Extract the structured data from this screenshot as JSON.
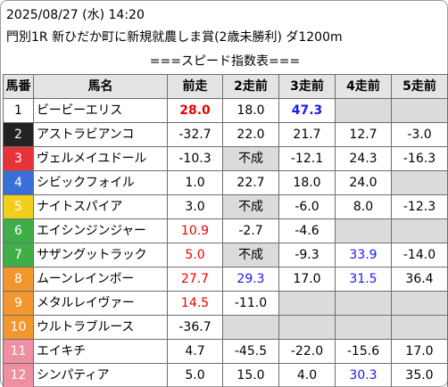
{
  "header": {
    "datetime": "2025/08/27 (水) 14:20",
    "race": "門別1R 新ひだか町に新規就農しま賞(2歳未勝利) ダ1200m",
    "table_title": "===スピード指数表==="
  },
  "columns": [
    "馬番",
    "馬名",
    "前走",
    "2走前",
    "3走前",
    "4走前",
    "5走前"
  ],
  "colors": {
    "red": "#ee0000",
    "blue": "#1a1aee",
    "cell_empty": "#dcdcdc",
    "header_bg": "#e4e4e4"
  },
  "rows": [
    {
      "num": "1",
      "num_bg": "#ffffff",
      "num_fg": "#000000",
      "name": "ビービーエリス",
      "cells": [
        {
          "v": "28.0",
          "c": "red",
          "b": true
        },
        {
          "v": "18.0"
        },
        {
          "v": "47.3",
          "c": "blue",
          "b": true
        },
        {
          "v": "",
          "g": true
        },
        {
          "v": "",
          "g": true
        }
      ]
    },
    {
      "num": "2",
      "num_bg": "#222222",
      "num_fg": "#ffffff",
      "name": "アストラビアンコ",
      "cells": [
        {
          "v": "-32.7"
        },
        {
          "v": "22.0"
        },
        {
          "v": "21.7"
        },
        {
          "v": "12.7"
        },
        {
          "v": "-3.0"
        }
      ]
    },
    {
      "num": "3",
      "num_bg": "#e8323a",
      "num_fg": "#ffffff",
      "name": "ヴェルメイユドール",
      "cells": [
        {
          "v": "-10.3"
        },
        {
          "v": "不成",
          "g": true
        },
        {
          "v": "-12.1"
        },
        {
          "v": "24.3"
        },
        {
          "v": "-16.3"
        }
      ]
    },
    {
      "num": "4",
      "num_bg": "#3a6fd8",
      "num_fg": "#ffffff",
      "name": "シビックフォイル",
      "cells": [
        {
          "v": "1.0"
        },
        {
          "v": "22.7"
        },
        {
          "v": "18.0"
        },
        {
          "v": "24.0"
        },
        {
          "v": "",
          "g": true
        }
      ]
    },
    {
      "num": "5",
      "num_bg": "#f2cf1f",
      "num_fg": "#ffffff",
      "name": "ナイトスパイア",
      "cells": [
        {
          "v": "3.0"
        },
        {
          "v": "不成",
          "g": true
        },
        {
          "v": "-6.0"
        },
        {
          "v": "8.0"
        },
        {
          "v": "-12.3"
        }
      ]
    },
    {
      "num": "6",
      "num_bg": "#3fae49",
      "num_fg": "#ffffff",
      "name": "エイシンジンジャー",
      "cells": [
        {
          "v": "10.9",
          "c": "red"
        },
        {
          "v": "-2.7"
        },
        {
          "v": "-4.6"
        },
        {
          "v": "",
          "g": true
        },
        {
          "v": "",
          "g": true
        }
      ]
    },
    {
      "num": "7",
      "num_bg": "#3fae49",
      "num_fg": "#ffffff",
      "name": "サザングットラック",
      "cells": [
        {
          "v": "5.0",
          "c": "red"
        },
        {
          "v": "不成",
          "g": true
        },
        {
          "v": "-9.3"
        },
        {
          "v": "33.9",
          "c": "blue"
        },
        {
          "v": "-14.0"
        }
      ]
    },
    {
      "num": "8",
      "num_bg": "#f2972e",
      "num_fg": "#ffffff",
      "name": "ムーンレインボー",
      "cells": [
        {
          "v": "27.7",
          "c": "red"
        },
        {
          "v": "29.3",
          "c": "blue"
        },
        {
          "v": "17.0"
        },
        {
          "v": "31.5",
          "c": "blue"
        },
        {
          "v": "36.4"
        }
      ]
    },
    {
      "num": "9",
      "num_bg": "#f2972e",
      "num_fg": "#ffffff",
      "name": "メタルレイヴァー",
      "cells": [
        {
          "v": "14.5",
          "c": "red"
        },
        {
          "v": "-11.0"
        },
        {
          "v": "",
          "g": true
        },
        {
          "v": "",
          "g": true
        },
        {
          "v": "",
          "g": true
        }
      ]
    },
    {
      "num": "10",
      "num_bg": "#f2972e",
      "num_fg": "#ffffff",
      "name": "ウルトラブルース",
      "cells": [
        {
          "v": "-36.7"
        },
        {
          "v": "",
          "g": true
        },
        {
          "v": "",
          "g": true
        },
        {
          "v": "",
          "g": true
        },
        {
          "v": "",
          "g": true
        }
      ]
    },
    {
      "num": "11",
      "num_bg": "#ef8fa2",
      "num_fg": "#ffffff",
      "name": "エイキチ",
      "cells": [
        {
          "v": "4.7"
        },
        {
          "v": "-45.5"
        },
        {
          "v": "-22.0"
        },
        {
          "v": "-15.6"
        },
        {
          "v": "17.0"
        }
      ]
    },
    {
      "num": "12",
      "num_bg": "#ef8fa2",
      "num_fg": "#ffffff",
      "name": "シンパティア",
      "cells": [
        {
          "v": "5.0"
        },
        {
          "v": "15.0"
        },
        {
          "v": "4.0"
        },
        {
          "v": "30.3",
          "c": "blue"
        },
        {
          "v": "35.0"
        }
      ]
    }
  ]
}
